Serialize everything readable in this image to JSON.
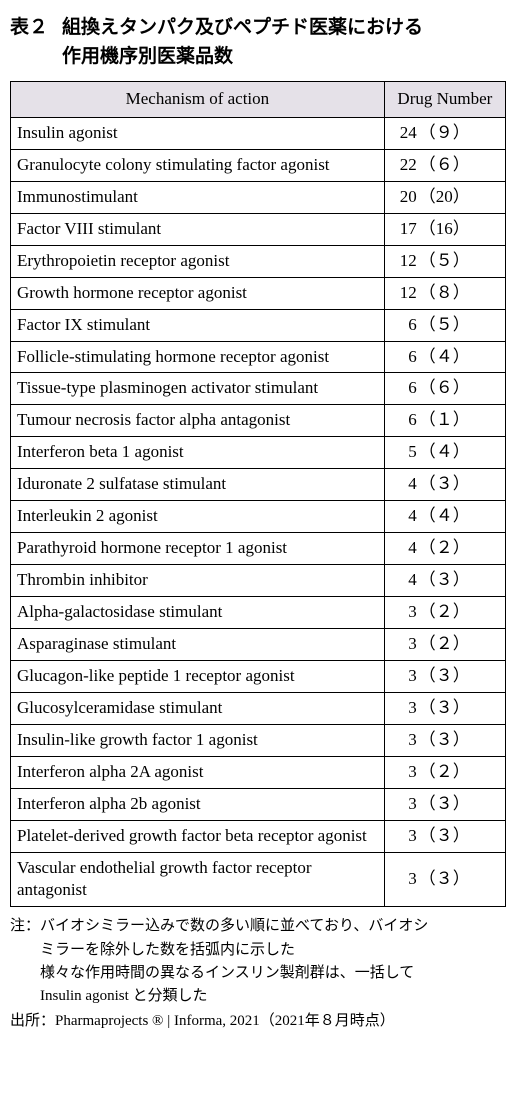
{
  "title_label": "表２",
  "title_text_l1": "組換えタンパク及びペプチド医薬における",
  "title_text_l2": "作用機序別医薬品数",
  "headers": {
    "moa": "Mechanism of action",
    "num": "Drug Number"
  },
  "colors": {
    "header_bg": "#e5e1e8",
    "border": "#000000",
    "text": "#000000",
    "background": "#ffffff"
  },
  "rows": [
    {
      "moa": "Insulin agonist",
      "n": "24",
      "p": "（９）"
    },
    {
      "moa": "Granulocyte colony stimulating factor agonist",
      "n": "22",
      "p": "（６）"
    },
    {
      "moa": "Immunostimulant",
      "n": "20",
      "p": "（20）"
    },
    {
      "moa": "Factor VIII stimulant",
      "n": "17",
      "p": "（16）"
    },
    {
      "moa": "Erythropoietin receptor agonist",
      "n": "12",
      "p": "（５）"
    },
    {
      "moa": "Growth hormone receptor agonist",
      "n": "12",
      "p": "（８）"
    },
    {
      "moa": "Factor IX stimulant",
      "n": "6",
      "p": "（５）"
    },
    {
      "moa": "Follicle-stimulating hormone receptor agonist",
      "n": "6",
      "p": "（４）"
    },
    {
      "moa": "Tissue-type plasminogen activator stimulant",
      "n": "6",
      "p": "（６）"
    },
    {
      "moa": "Tumour necrosis factor alpha antagonist",
      "n": "6",
      "p": "（１）"
    },
    {
      "moa": "Interferon beta 1 agonist",
      "n": "5",
      "p": "（４）"
    },
    {
      "moa": "Iduronate 2 sulfatase stimulant",
      "n": "4",
      "p": "（３）"
    },
    {
      "moa": "Interleukin 2 agonist",
      "n": "4",
      "p": "（４）"
    },
    {
      "moa": "Parathyroid hormone receptor 1 agonist",
      "n": "4",
      "p": "（２）"
    },
    {
      "moa": "Thrombin inhibitor",
      "n": "4",
      "p": "（３）"
    },
    {
      "moa": "Alpha-galactosidase stimulant",
      "n": "3",
      "p": "（２）"
    },
    {
      "moa": "Asparaginase stimulant",
      "n": "3",
      "p": "（２）"
    },
    {
      "moa": "Glucagon-like peptide 1 receptor agonist",
      "n": "3",
      "p": "（３）"
    },
    {
      "moa": "Glucosylceramidase stimulant",
      "n": "3",
      "p": "（３）"
    },
    {
      "moa": "Insulin-like growth factor 1 agonist",
      "n": "3",
      "p": "（３）"
    },
    {
      "moa": "Interferon alpha 2A agonist",
      "n": "3",
      "p": "（２）"
    },
    {
      "moa": "Interferon alpha 2b agonist",
      "n": "3",
      "p": "（３）"
    },
    {
      "moa": "Platelet-derived growth factor beta receptor agonist",
      "n": "3",
      "p": "（３）"
    },
    {
      "moa": "Vascular endothelial growth factor receptor antagonist",
      "n": "3",
      "p": "（３）"
    }
  ],
  "notes": {
    "prefix1": "注：",
    "body1a": "バイオシミラー込みで数の多い順に並べており、バイオシ",
    "body1b": "ミラーを除外した数を括弧内に示した",
    "body2a": "様々な作用時間の異なるインスリン製剤群は、一括して",
    "body2b": "Insulin agonist と分類した",
    "source": "出所：Pharmaprojects ® | Informa, 2021（2021年８月時点）"
  }
}
